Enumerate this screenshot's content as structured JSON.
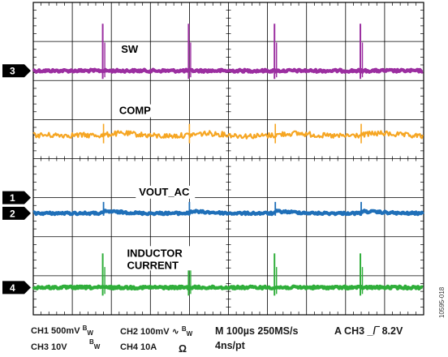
{
  "chart_data": {
    "type": "line",
    "title": "",
    "xlabel": "",
    "ylabel": "",
    "x_divisions": 10,
    "y_divisions": 8,
    "xlim": [
      0,
      10
    ],
    "ylim": [
      0,
      8
    ],
    "grid": true,
    "series": [
      {
        "name": "SW",
        "channel": "3",
        "color": "#9b2ea0",
        "label": "SW",
        "baseline_div": 6.25,
        "events_div": [
          1.8,
          4.0,
          6.2,
          8.4
        ],
        "event_kind": "spike"
      },
      {
        "name": "COMP",
        "color": "#f6a623",
        "label": "COMP",
        "baseline_div": 4.6,
        "events_div": [
          1.8,
          4.0,
          6.2,
          8.4
        ],
        "event_kind": "ripple"
      },
      {
        "name": "VOUT_AC",
        "channel": "2",
        "color": "#1f6fb8",
        "label": "VOUT_AC",
        "baseline_div": 2.6,
        "events_div": [
          1.8,
          4.0,
          6.2,
          8.4
        ],
        "event_kind": "step"
      },
      {
        "name": "INDUCTOR CURRENT",
        "channel": "4",
        "color": "#2fae3a",
        "label_lines": [
          "INDUCTOR",
          "CURRENT"
        ],
        "baseline_div": 0.7,
        "events_div": [
          1.8,
          4.0,
          6.2,
          8.4
        ],
        "event_kind": "spike"
      }
    ],
    "ground_markers": [
      {
        "channel": "3",
        "level_div": 6.25
      },
      {
        "channel": "1",
        "level_div": 3.0
      },
      {
        "channel": "2",
        "level_div": 2.6
      },
      {
        "channel": "4",
        "level_div": 0.7
      }
    ]
  },
  "footer": {
    "ch1": "CH1 500mV",
    "bw": "B",
    "bw_sub": "W",
    "ch2": "CH2 100mV",
    "ac_symbol": "∿",
    "ch3": "CH3 10V",
    "ch4": "CH4 10A",
    "ohm": "Ω",
    "timebase": "M 100µs 250MS/s",
    "resolution": "4ns/pt",
    "trigger_prefix": "A  CH3",
    "trigger_symbol": "_/‾",
    "trigger_level": "8.2V"
  },
  "figure_id": "10595-018"
}
